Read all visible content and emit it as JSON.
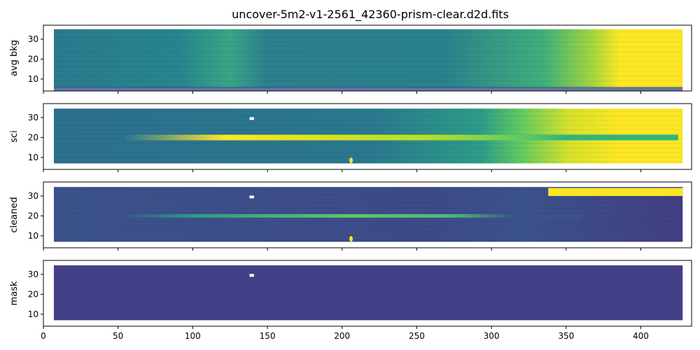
{
  "title": "uncover-5m2-v1-2561_42360-prism-clear.d2d.fits",
  "chart_data": {
    "type": "heatmap",
    "title": "uncover-5m2-v1-2561_42360-prism-clear.d2d.fits",
    "xlim": [
      0,
      434
    ],
    "ylim": [
      4,
      37
    ],
    "x_ticks": [
      0,
      50,
      100,
      150,
      200,
      250,
      300,
      350,
      400
    ],
    "y_ticks": [
      10,
      20,
      30
    ],
    "colormap": "viridis",
    "data_x_range": [
      7,
      428
    ],
    "trace_row": 20,
    "panels": [
      {
        "name": "avg bkg",
        "ylabel": "avg bkg",
        "description_value": "background"
      },
      {
        "name": "sci",
        "ylabel": "sci",
        "description_value": "science"
      },
      {
        "name": "cleaned",
        "ylabel": "cleaned",
        "description_value": "cleaned"
      },
      {
        "name": "mask",
        "ylabel": "mask",
        "description_value": "mask"
      }
    ]
  },
  "colors": {
    "viridis_low": "#440154",
    "viridis_dark": "#3b528b",
    "viridis_mid": "#21918c",
    "viridis_green": "#5ec962",
    "viridis_high": "#fde725"
  }
}
